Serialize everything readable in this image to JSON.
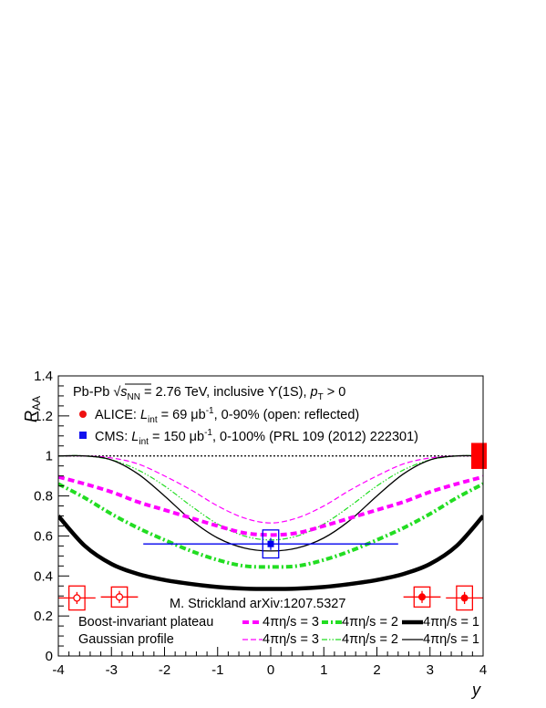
{
  "chart_data": {
    "type": "line",
    "xlabel": "y",
    "ylabel": "R",
    "ylabel_sub": "AA",
    "xlim": [
      -4,
      4
    ],
    "ylim": [
      0,
      1.4
    ],
    "x_ticks": [
      "-4",
      "-3",
      "-2",
      "-1",
      "0",
      "1",
      "2",
      "3",
      "4"
    ],
    "y_ticks": [
      "0",
      "0.2",
      "0.4",
      "0.6",
      "0.8",
      "1",
      "1.2",
      "1.4"
    ],
    "header": {
      "system": "Pb-Pb",
      "sqrt": "s",
      "sqrt_sub": "NN",
      "energy": " = 2.76 TeV, inclusive ϒ(1S), ",
      "pt": "p",
      "pt_sub": "T",
      "pt_tail": " > 0"
    },
    "experiments": [
      {
        "name": "ALICE: ",
        "L": "L",
        "L_sub": "int",
        "lumi": " = 69 μb",
        "lumi_sup": "-1",
        "tail": ", 0-90% (open: reflected)",
        "color": "#e8190e"
      },
      {
        "name": "CMS: ",
        "L": "L",
        "L_sub": "int",
        "lumi": " = 150 μb",
        "lumi_sup": "-1",
        "tail": ", 0-100% (PRL 109 (2012) 222301)",
        "color": "#1010e0"
      }
    ],
    "credit": "M. Strickland arXiv:1207.5327",
    "profiles": [
      "Boost-invariant plateau",
      "Gaussian profile"
    ],
    "eta_labels": [
      "4πη/s = 3",
      "4πη/s = 2",
      "4πη/s = 1"
    ],
    "reference_line": 1,
    "colors": {
      "magenta": "#ff00ff",
      "green": "#22dd22",
      "black": "#000000",
      "red": "#ff0000",
      "blue": "#0000ee"
    },
    "series": [
      {
        "profile": "Boost-invariant plateau",
        "eta_s": 3,
        "color": "#ff00ff",
        "style": "dashed-thick",
        "x": [
          -4,
          -3.5,
          -3,
          -2.5,
          -2,
          -1.5,
          -1,
          -0.5,
          0,
          0.5,
          1,
          1.5,
          2,
          2.5,
          3,
          3.5,
          4
        ],
        "y": [
          0.895,
          0.86,
          0.82,
          0.77,
          0.73,
          0.69,
          0.65,
          0.615,
          0.605,
          0.615,
          0.65,
          0.69,
          0.73,
          0.77,
          0.82,
          0.86,
          0.895
        ]
      },
      {
        "profile": "Boost-invariant plateau",
        "eta_s": 2,
        "color": "#22dd22",
        "style": "dashdot-thick",
        "x": [
          -4,
          -3.5,
          -3,
          -2.5,
          -2,
          -1.5,
          -1,
          -0.5,
          0,
          0.5,
          1,
          1.5,
          2,
          2.5,
          3,
          3.5,
          4
        ],
        "y": [
          0.86,
          0.79,
          0.71,
          0.64,
          0.58,
          0.525,
          0.48,
          0.45,
          0.445,
          0.45,
          0.48,
          0.525,
          0.58,
          0.64,
          0.71,
          0.79,
          0.86
        ]
      },
      {
        "profile": "Boost-invariant plateau",
        "eta_s": 1,
        "color": "#000000",
        "style": "solid-thick",
        "x": [
          -4,
          -3.5,
          -3,
          -2.5,
          -2,
          -1.5,
          -1,
          -0.5,
          0,
          0.5,
          1,
          1.5,
          2,
          2.5,
          3,
          3.5,
          4
        ],
        "y": [
          0.7,
          0.55,
          0.46,
          0.41,
          0.38,
          0.36,
          0.345,
          0.337,
          0.335,
          0.337,
          0.345,
          0.36,
          0.38,
          0.41,
          0.46,
          0.55,
          0.7
        ]
      },
      {
        "profile": "Gaussian profile",
        "eta_s": 3,
        "color": "#ff00ff",
        "style": "dashed-thin",
        "x": [
          -4,
          -3.5,
          -3,
          -2.5,
          -2,
          -1.5,
          -1,
          -0.5,
          0,
          0.5,
          1,
          1.5,
          2,
          2.5,
          3,
          3.5,
          4
        ],
        "y": [
          1.0,
          1.0,
          0.99,
          0.96,
          0.9,
          0.83,
          0.75,
          0.69,
          0.665,
          0.69,
          0.75,
          0.83,
          0.9,
          0.96,
          0.99,
          1.0,
          1.0
        ]
      },
      {
        "profile": "Gaussian profile",
        "eta_s": 2,
        "color": "#22dd22",
        "style": "dashdot-thin",
        "x": [
          -4,
          -3.5,
          -3,
          -2.5,
          -2,
          -1.5,
          -1,
          -0.5,
          0,
          0.5,
          1,
          1.5,
          2,
          2.5,
          3,
          3.5,
          4
        ],
        "y": [
          1.0,
          1.0,
          0.98,
          0.93,
          0.85,
          0.75,
          0.66,
          0.6,
          0.58,
          0.6,
          0.66,
          0.75,
          0.85,
          0.93,
          0.98,
          1.0,
          1.0
        ]
      },
      {
        "profile": "Gaussian profile",
        "eta_s": 1,
        "color": "#000000",
        "style": "solid-thin",
        "x": [
          -4,
          -3.5,
          -3,
          -2.5,
          -2,
          -1.5,
          -1,
          -0.5,
          0,
          0.5,
          1,
          1.5,
          2,
          2.5,
          3,
          3.5,
          4
        ],
        "y": [
          1.0,
          1.0,
          0.98,
          0.91,
          0.8,
          0.68,
          0.59,
          0.54,
          0.525,
          0.54,
          0.59,
          0.68,
          0.8,
          0.91,
          0.98,
          1.0,
          1.0
        ]
      }
    ],
    "data_points": [
      {
        "experiment": "ALICE",
        "open": true,
        "x": -3.65,
        "y": 0.29,
        "xerr": 0.35,
        "yerr": 0.03,
        "sys_dx": 0.15,
        "sys_dy": 0.06
      },
      {
        "experiment": "ALICE",
        "open": true,
        "x": -2.85,
        "y": 0.295,
        "xerr": 0.35,
        "yerr": 0.03,
        "sys_dx": 0.15,
        "sys_dy": 0.05
      },
      {
        "experiment": "ALICE",
        "open": false,
        "x": 2.85,
        "y": 0.295,
        "xerr": 0.35,
        "yerr": 0.03,
        "sys_dx": 0.15,
        "sys_dy": 0.05
      },
      {
        "experiment": "ALICE",
        "open": false,
        "x": 3.65,
        "y": 0.29,
        "xerr": 0.35,
        "yerr": 0.03,
        "sys_dx": 0.15,
        "sys_dy": 0.06
      },
      {
        "experiment": "CMS",
        "open": false,
        "x": 0,
        "y": 0.56,
        "xerr": 2.4,
        "yerr": 0.03,
        "sys_dx": 0.15,
        "sys_dy": 0.07
      }
    ],
    "global_uncertainty": {
      "x": 4,
      "y": 1,
      "dy": 0.065
    }
  }
}
